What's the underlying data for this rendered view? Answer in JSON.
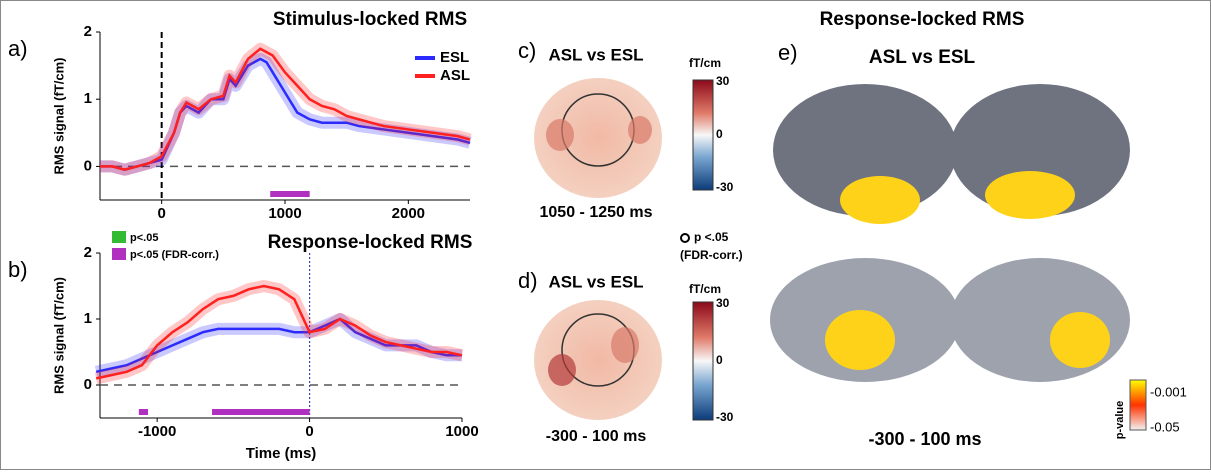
{
  "chart_data": [
    {
      "type": "line",
      "panel": "a)",
      "title": "Stimulus-locked RMS",
      "y_label": "RMS signal (fT/cm)",
      "xlim": [
        -500,
        2500
      ],
      "ylim": [
        -0.5,
        2
      ],
      "xticks": [
        0,
        1000,
        2000
      ],
      "yticks": [
        0,
        1,
        2
      ],
      "x": [
        -500,
        -400,
        -300,
        -200,
        -100,
        0,
        100,
        150,
        200,
        300,
        400,
        500,
        550,
        600,
        700,
        800,
        850,
        900,
        1000,
        1100,
        1200,
        1300,
        1400,
        1500,
        1600,
        1800,
        2000,
        2200,
        2400,
        2500
      ],
      "series": [
        {
          "name": "ESL",
          "color": "#2b2bff",
          "values": [
            0,
            0,
            -0.05,
            0,
            0.05,
            0.1,
            0.5,
            0.8,
            0.9,
            0.8,
            1.0,
            1.0,
            1.3,
            1.2,
            1.5,
            1.6,
            1.55,
            1.4,
            1.1,
            0.8,
            0.7,
            0.65,
            0.65,
            0.65,
            0.6,
            0.55,
            0.5,
            0.45,
            0.4,
            0.35
          ]
        },
        {
          "name": "ASL",
          "color": "#ff2020",
          "values": [
            0,
            0,
            -0.05,
            0,
            0.05,
            0.15,
            0.5,
            0.8,
            0.95,
            0.85,
            1.0,
            1.05,
            1.35,
            1.25,
            1.6,
            1.75,
            1.7,
            1.65,
            1.4,
            1.2,
            1.0,
            0.9,
            0.85,
            0.75,
            0.7,
            0.6,
            0.55,
            0.5,
            0.45,
            0.4
          ]
        }
      ],
      "sig_fdr": [
        [
          880,
          1200
        ]
      ]
    },
    {
      "type": "line",
      "panel": "b)",
      "title": "Response-locked RMS",
      "y_label": "RMS signal (fT/cm)",
      "x_label": "Time (ms)",
      "xlim": [
        -1375,
        1000
      ],
      "ylim": [
        -0.5,
        2
      ],
      "xticks": [
        -1000,
        0,
        1000
      ],
      "yticks": [
        0,
        1,
        2
      ],
      "x": [
        -1400,
        -1300,
        -1200,
        -1100,
        -1000,
        -900,
        -800,
        -700,
        -600,
        -500,
        -400,
        -300,
        -200,
        -100,
        0,
        100,
        200,
        300,
        400,
        500,
        600,
        700,
        800,
        900,
        1000
      ],
      "series": [
        {
          "name": "ESL",
          "color": "#2b2bff",
          "values": [
            0.2,
            0.25,
            0.3,
            0.4,
            0.5,
            0.6,
            0.7,
            0.8,
            0.85,
            0.85,
            0.85,
            0.85,
            0.85,
            0.8,
            0.8,
            0.9,
            1.0,
            0.8,
            0.7,
            0.6,
            0.6,
            0.6,
            0.5,
            0.45,
            0.45
          ]
        },
        {
          "name": "ASL",
          "color": "#ff2020",
          "values": [
            0.1,
            0.15,
            0.2,
            0.3,
            0.6,
            0.8,
            0.95,
            1.15,
            1.3,
            1.35,
            1.45,
            1.5,
            1.45,
            1.3,
            0.8,
            0.85,
            1.0,
            0.9,
            0.75,
            0.65,
            0.6,
            0.55,
            0.5,
            0.5,
            0.45
          ]
        }
      ],
      "sig_fdr": [
        [
          -1120,
          -1060
        ],
        [
          -640,
          0
        ]
      ]
    }
  ],
  "sig_legend": [
    "p<.05",
    "p<.05 (FDR-corr.)"
  ],
  "topo": {
    "c": {
      "panel": "c)",
      "title": "ASL vs ESL",
      "window": "1050 - 1250 ms"
    },
    "d": {
      "panel": "d)",
      "title": "ASL vs ESL",
      "window": "-300 - 100 ms"
    },
    "unit": "fT/cm",
    "cbar": [
      "30",
      "0",
      "-30"
    ],
    "marker_note": [
      "p <.05",
      "(FDR-corr.)"
    ]
  },
  "brain": {
    "panel": "e)",
    "title": "Response-locked RMS",
    "subtitle": "ASL vs ESL",
    "window": "-300 - 100 ms",
    "cbar_label": "p-value",
    "cbar": [
      "-0.001",
      "-0.05"
    ]
  }
}
